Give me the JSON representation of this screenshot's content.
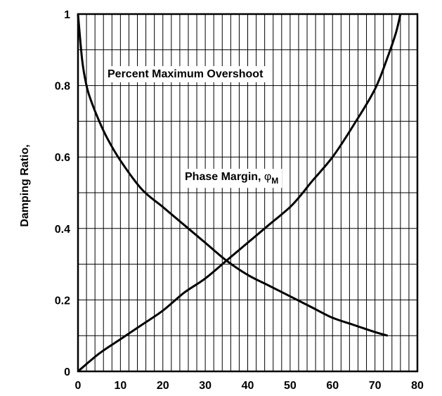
{
  "chart_data": {
    "type": "line",
    "ylabel": "Damping Ratio,",
    "xlim": [
      0,
      80
    ],
    "ylim": [
      0,
      1
    ],
    "x_ticks": [
      "0",
      "10",
      "20",
      "30",
      "40",
      "50",
      "60",
      "70",
      "80"
    ],
    "y_ticks": [
      "0",
      "0.2",
      "0.4",
      "0.6",
      "0.8",
      "1"
    ],
    "grid": true,
    "minor_x_step": 2,
    "minor_y_step": 0.1,
    "series": [
      {
        "name": "Percent Maximum Overshoot",
        "x": [
          0,
          1,
          2,
          3,
          5,
          7,
          10,
          15,
          20,
          25,
          30,
          35,
          40,
          45,
          50,
          55,
          60,
          65,
          70,
          73
        ],
        "y": [
          1.0,
          0.87,
          0.8,
          0.76,
          0.7,
          0.65,
          0.59,
          0.51,
          0.46,
          0.41,
          0.36,
          0.31,
          0.27,
          0.24,
          0.21,
          0.18,
          0.15,
          0.13,
          0.11,
          0.1
        ]
      },
      {
        "name": "Phase Margin, ",
        "name_symbol": "φ",
        "name_subscript": "M",
        "x": [
          0,
          5,
          10,
          15,
          20,
          25,
          30,
          35,
          40,
          45,
          50,
          53,
          55,
          60,
          65,
          70,
          73,
          75,
          76
        ],
        "y": [
          0.0,
          0.05,
          0.09,
          0.13,
          0.17,
          0.22,
          0.26,
          0.31,
          0.36,
          0.41,
          0.46,
          0.5,
          0.53,
          0.6,
          0.69,
          0.79,
          0.88,
          0.95,
          1.0
        ]
      }
    ]
  }
}
